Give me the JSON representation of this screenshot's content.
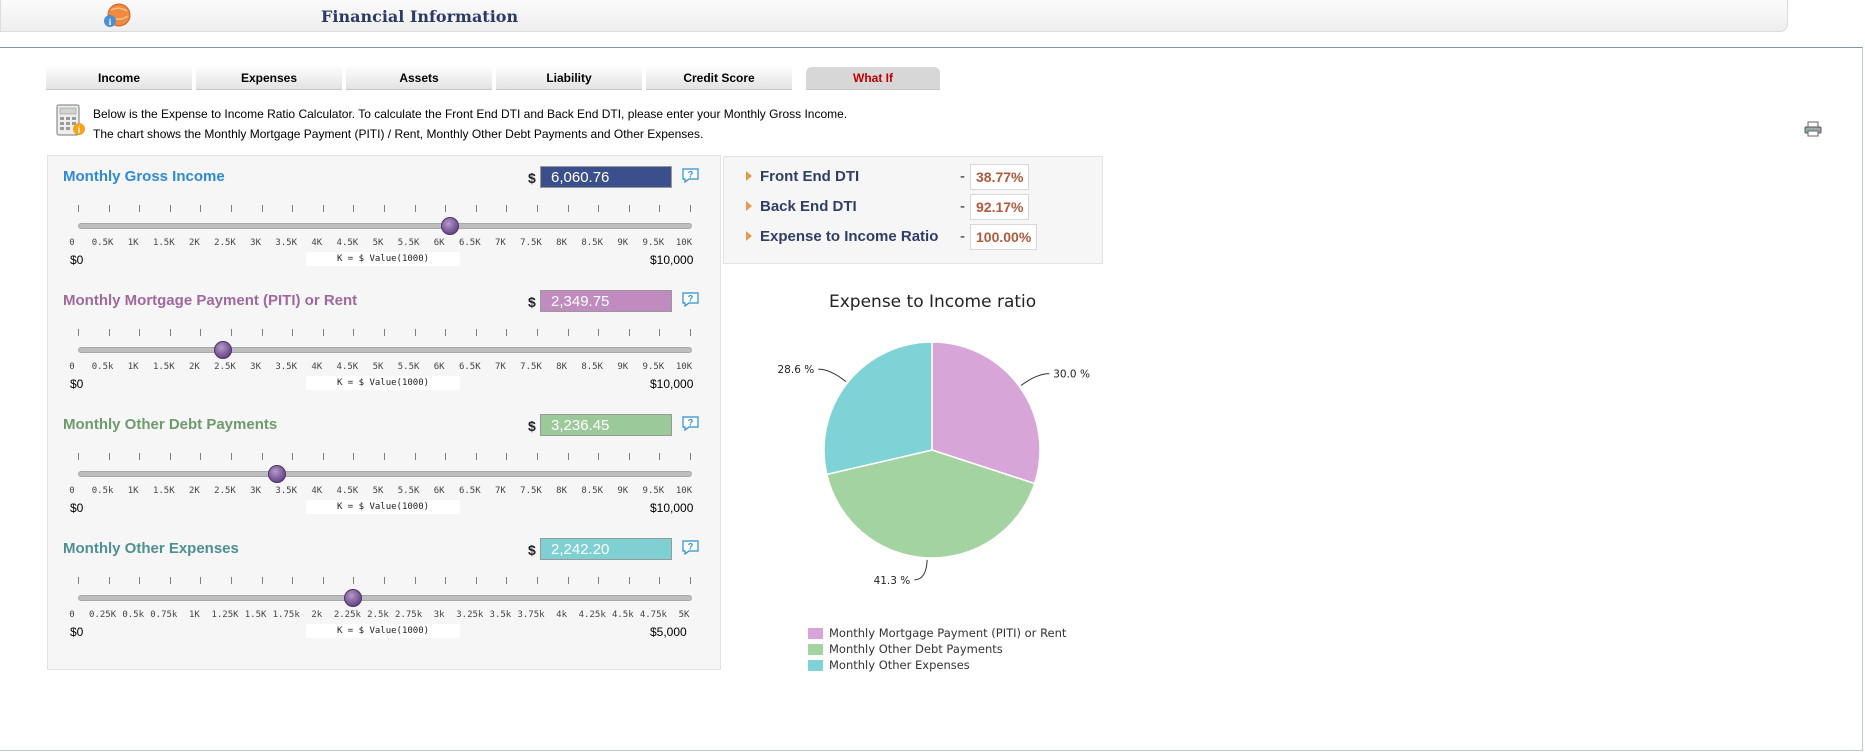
{
  "header": {
    "title": "Financial Information",
    "logo_icon": "info-globe-icon"
  },
  "tabs": [
    {
      "label": "Income"
    },
    {
      "label": "Expenses"
    },
    {
      "label": "Assets"
    },
    {
      "label": "Liability"
    },
    {
      "label": "Credit Score"
    },
    {
      "label": "What If",
      "active": true
    }
  ],
  "intro": {
    "line1": "Below is the Expense to Income Ratio Calculator. To calculate the Front End DTI and Back End DTI, please enter your Monthly Gross Income.",
    "line2": "The chart shows the Monthly Mortgage Payment (PITI) / Rent, Monthly Other Debt Payments and Other Expenses."
  },
  "currency_symbol": "$",
  "scale_note": "K = $ Value(1000)",
  "sliders": [
    {
      "title": "Monthly Gross Income",
      "value": "6,060.76",
      "level": 6060.76,
      "max": 10000,
      "title_color": "#2e8ad8",
      "box_color": "#3a4f8c",
      "min_label": "$0",
      "max_label": "$10,000",
      "ticks": [
        "0",
        "0.5K",
        "1K",
        "1.5K",
        "2K",
        "2.5K",
        "3K",
        "3.5K",
        "4K",
        "4.5K",
        "5K",
        "5.5K",
        "6K",
        "6.5K",
        "7K",
        "7.5K",
        "8K",
        "8.5K",
        "9K",
        "9.5K",
        "10K"
      ]
    },
    {
      "title": "Monthly Mortgage Payment (PITI) or Rent",
      "value": "2,349.75",
      "level": 2349.75,
      "max": 10000,
      "title_color": "#a0689f",
      "box_color": "#c08cc0",
      "min_label": "$0",
      "max_label": "$10,000",
      "ticks": [
        "0",
        "0.5k",
        "1K",
        "1.5K",
        "2K",
        "2.5K",
        "3K",
        "3.5K",
        "4K",
        "4.5K",
        "5K",
        "5.5K",
        "6K",
        "6.5K",
        "7K",
        "7.5K",
        "8K",
        "8.5K",
        "9K",
        "9.5K",
        "10K"
      ]
    },
    {
      "title": "Monthly Other Debt Payments",
      "value": "3,236.45",
      "level": 3236.45,
      "max": 10000,
      "title_color": "#6e9a6e",
      "box_color": "#9cc99a",
      "min_label": "$0",
      "max_label": "$10,000",
      "ticks": [
        "0",
        "0.5k",
        "1K",
        "1.5K",
        "2K",
        "2.5K",
        "3K",
        "3.5K",
        "4K",
        "4.5K",
        "5K",
        "5.5K",
        "6K",
        "6.5K",
        "7K",
        "7.5K",
        "8K",
        "8.5K",
        "9K",
        "9.5K",
        "10K"
      ]
    },
    {
      "title": "Monthly Other Expenses",
      "value": "2,242.20",
      "level": 2242.2,
      "max": 5000,
      "title_color": "#4e8f94",
      "box_color": "#7fd0d3",
      "min_label": "$0",
      "max_label": "$5,000",
      "ticks": [
        "0",
        "0.25K",
        "0.5k",
        "0.75k",
        "1K",
        "1.25K",
        "1.5K",
        "1.75k",
        "2k",
        "2.25k",
        "2.5k",
        "2.75k",
        "3k",
        "3.25k",
        "3.5k",
        "3.75k",
        "4k",
        "4.25k",
        "4.5k",
        "4.75k",
        "5K"
      ]
    }
  ],
  "dti": [
    {
      "label": "Front End DTI",
      "value": "38.77%"
    },
    {
      "label": "Back End DTI",
      "value": "92.17%"
    },
    {
      "label": "Expense to Income Ratio",
      "value": "100.00%"
    }
  ],
  "chart_data": {
    "type": "pie",
    "title": "Expense to Income ratio",
    "labels": [
      "Monthly Mortgage Payment (PITI) or Rent",
      "Monthly Other Debt Payments",
      "Monthly Other Expenses"
    ],
    "values": [
      30.0,
      41.3,
      28.6
    ],
    "value_labels": [
      "30.0 %",
      "41.3 %",
      "28.6 %"
    ],
    "colors": [
      "#d8a5d8",
      "#a3d3a1",
      "#7fd3d6"
    ],
    "legend": "bottom"
  }
}
